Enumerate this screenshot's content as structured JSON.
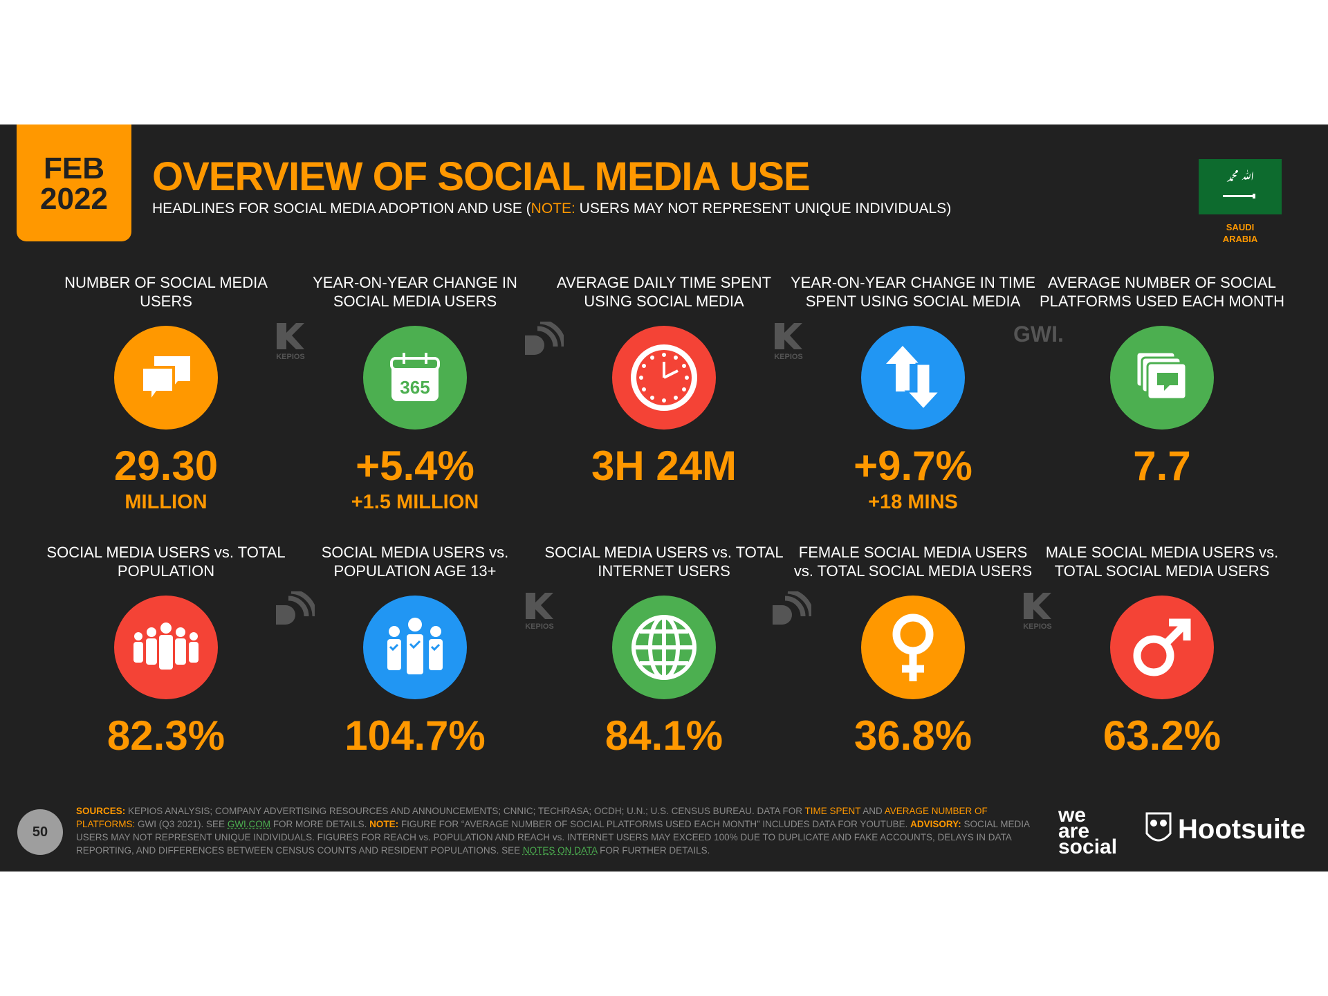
{
  "header": {
    "month": "FEB",
    "year": "2022",
    "title": "OVERVIEW OF SOCIAL MEDIA USE",
    "subtitle_pre": "HEADLINES FOR SOCIAL MEDIA ADOPTION AND USE (",
    "subtitle_note": "NOTE:",
    "subtitle_post": " USERS MAY NOT REPRESENT UNIQUE INDIVIDUALS)",
    "country": "SAUDI ARABIA"
  },
  "colors": {
    "background": "#212121",
    "accent": "#ff9800",
    "green": "#4caf50",
    "red": "#f44336",
    "blue": "#2196f3"
  },
  "row1": [
    {
      "label": "NUMBER OF SOCIAL MEDIA USERS",
      "value": "29.30",
      "sub": "MILLION",
      "icon": "chat-bubbles-icon",
      "color": "#ff9800"
    },
    {
      "label": "YEAR-ON-YEAR CHANGE IN SOCIAL MEDIA USERS",
      "value": "+5.4%",
      "sub": "+1.5 MILLION",
      "icon": "calendar-365-icon",
      "color": "#4caf50"
    },
    {
      "label": "AVERAGE DAILY TIME SPENT USING SOCIAL MEDIA",
      "value": "3H 24M",
      "sub": "",
      "icon": "clock-icon",
      "color": "#f44336"
    },
    {
      "label": "YEAR-ON-YEAR CHANGE IN TIME SPENT USING SOCIAL MEDIA",
      "value": "+9.7%",
      "sub": "+18 MINS",
      "icon": "up-down-arrows-icon",
      "color": "#2196f3"
    },
    {
      "label": "AVERAGE NUMBER OF SOCIAL PLATFORMS USED EACH MONTH",
      "value": "7.7",
      "sub": "",
      "icon": "stacked-windows-icon",
      "color": "#4caf50"
    }
  ],
  "row2": [
    {
      "label": "SOCIAL MEDIA USERS vs. TOTAL POPULATION",
      "value": "82.3%",
      "icon": "crowd-icon",
      "color": "#f44336"
    },
    {
      "label": "SOCIAL MEDIA USERS vs. POPULATION AGE 13+",
      "value": "104.7%",
      "icon": "people-check-icon",
      "color": "#2196f3"
    },
    {
      "label": "SOCIAL MEDIA USERS vs. TOTAL INTERNET USERS",
      "value": "84.1%",
      "icon": "globe-icon",
      "color": "#4caf50"
    },
    {
      "label": "FEMALE SOCIAL MEDIA USERS vs. TOTAL SOCIAL MEDIA USERS",
      "value": "36.8%",
      "icon": "female-icon",
      "color": "#ff9800"
    },
    {
      "label": "MALE SOCIAL MEDIA USERS vs. TOTAL SOCIAL MEDIA USERS",
      "value": "63.2%",
      "icon": "male-icon",
      "color": "#f44336"
    }
  ],
  "partner_logos": {
    "kepios": "KEPIOS",
    "gwi": "GWI."
  },
  "footer": {
    "sources_label": "SOURCES:",
    "sources_text": " KEPIOS ANALYSIS; COMPANY ADVERTISING RESOURCES AND ANNOUNCEMENTS; CNNIC; TECHRASA; OCDH; U.N.; U.S. CENSUS BUREAU. DATA FOR ",
    "time_spent": "TIME SPENT",
    "and": " AND ",
    "avg_platforms": "AVERAGE NUMBER OF PLATFORMS:",
    "gwi_text": " GWI (Q3 2021). SEE ",
    "gwi_link": "GWI.COM",
    "more": " FOR MORE DETAILS. ",
    "note_label": "NOTE:",
    "note_text": " FIGURE FOR “AVERAGE NUMBER OF SOCIAL PLATFORMS USED EACH MONTH” INCLUDES DATA FOR YOUTUBE. ",
    "advisory_label": "ADVISORY:",
    "advisory_text": " SOCIAL MEDIA USERS MAY NOT REPRESENT UNIQUE INDIVIDUALS. FIGURES FOR REACH vs. POPULATION AND REACH vs. INTERNET USERS MAY EXCEED 100% DUE TO DUPLICATE AND FAKE ACCOUNTS, DELAYS IN DATA REPORTING, AND DIFFERENCES BETWEEN CENSUS COUNTS AND RESIDENT POPULATIONS. SEE ",
    "notes_link": "NOTES ON DATA",
    "end": " FOR FURTHER DETAILS.",
    "page": "50",
    "brand1": "we are social",
    "brand2": "Hootsuite"
  }
}
